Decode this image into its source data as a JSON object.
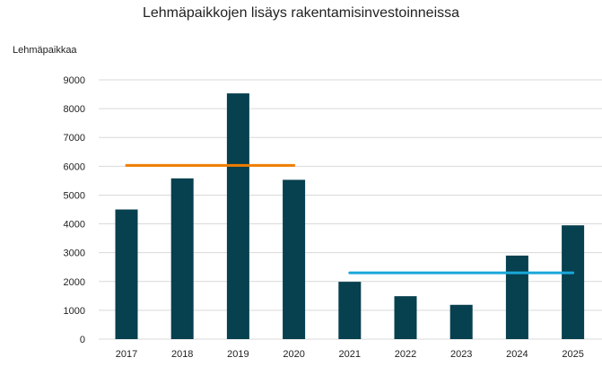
{
  "chart_data": {
    "type": "bar",
    "title": "Lehmäpaikkojen lisäys rakentamisinvestoinneissa",
    "xlabel": "",
    "ylabel": "Lehmäpaikkaa",
    "ylim": [
      0,
      9000
    ],
    "yticks": [
      0,
      1000,
      2000,
      3000,
      4000,
      5000,
      6000,
      7000,
      8000,
      9000
    ],
    "categories": [
      "2017",
      "2018",
      "2019",
      "2020",
      "2021",
      "2022",
      "2023",
      "2024",
      "2025"
    ],
    "values": [
      4500,
      5580,
      8530,
      5530,
      1990,
      1490,
      1190,
      2900,
      3950
    ],
    "reference_lines": [
      {
        "from": "2017",
        "to": "2020",
        "value": 6030,
        "color": "#f07d00"
      },
      {
        "from": "2021",
        "to": "2025",
        "value": 2300,
        "color": "#1aa7d9"
      }
    ],
    "grid": true,
    "legend": "none",
    "colors": {
      "bar": "#07404f",
      "grid": "#d9d9d9",
      "text": "#222222"
    }
  }
}
